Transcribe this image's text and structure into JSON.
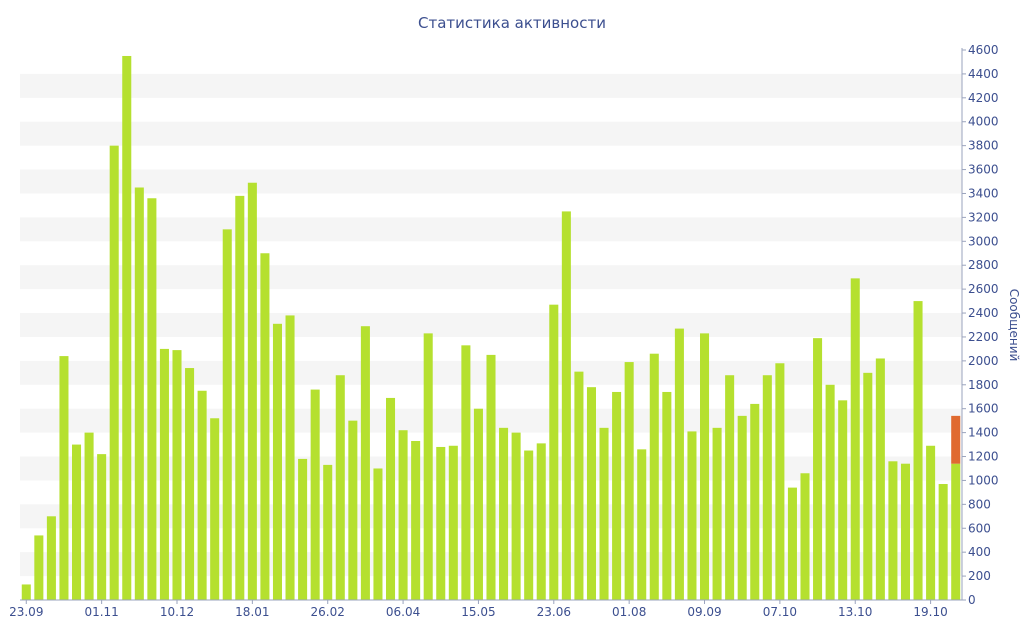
{
  "chart_data": {
    "type": "bar",
    "title": "Статистика активности",
    "ylabel": "Сообщений",
    "ylim": [
      0,
      4600
    ],
    "y_ticks": [
      0,
      200,
      400,
      600,
      800,
      1000,
      1200,
      1400,
      1600,
      1800,
      2000,
      2200,
      2400,
      2600,
      2800,
      3000,
      3200,
      3400,
      3600,
      3800,
      4000,
      4200,
      4400,
      4600
    ],
    "y_axis_position": "right",
    "x_tick_labels": [
      {
        "label": "23.09",
        "index": 0
      },
      {
        "label": "01.11",
        "index": 6
      },
      {
        "label": "10.12",
        "index": 12
      },
      {
        "label": "18.01",
        "index": 18
      },
      {
        "label": "26.02",
        "index": 24
      },
      {
        "label": "06.04",
        "index": 30
      },
      {
        "label": "15.05",
        "index": 36
      },
      {
        "label": "23.06",
        "index": 42
      },
      {
        "label": "01.08",
        "index": 48
      },
      {
        "label": "09.09",
        "index": 54
      },
      {
        "label": "07.10",
        "index": 60
      },
      {
        "label": "13.10",
        "index": 66
      },
      {
        "label": "19.10",
        "index": 72
      }
    ],
    "series": [
      {
        "color": "#b5e02f",
        "values": [
          130,
          540,
          700,
          2040,
          1300,
          1400,
          1220,
          3800,
          4550,
          3450,
          3360,
          2100,
          2090,
          1940,
          1750,
          1520,
          3100,
          3380,
          3490,
          2900,
          2310,
          2380,
          1180,
          1760,
          1130,
          1880,
          1500,
          2290,
          1100,
          1690,
          1420,
          1330,
          2230,
          1280,
          1290,
          2130,
          1600,
          2050,
          1440,
          1400,
          1250,
          1310,
          2470,
          3250,
          1910,
          1780,
          1440,
          1740,
          1990,
          1260,
          2060,
          1740,
          2270,
          1410,
          2230,
          1440,
          1880,
          1540,
          1640,
          1880,
          1980,
          940,
          1060,
          2190,
          1800,
          1670,
          2690,
          1900,
          2020,
          1160,
          1140,
          2500,
          1290,
          970,
          1140
        ]
      },
      {
        "color": "#e06a30",
        "values": [
          0,
          0,
          0,
          0,
          0,
          0,
          0,
          0,
          0,
          0,
          0,
          0,
          0,
          0,
          0,
          0,
          0,
          0,
          0,
          0,
          0,
          0,
          0,
          0,
          0,
          0,
          0,
          0,
          0,
          0,
          0,
          0,
          0,
          0,
          0,
          0,
          0,
          0,
          0,
          0,
          0,
          0,
          0,
          0,
          0,
          0,
          0,
          0,
          0,
          0,
          0,
          0,
          0,
          0,
          0,
          0,
          0,
          0,
          0,
          0,
          0,
          0,
          0,
          0,
          0,
          0,
          0,
          0,
          0,
          0,
          0,
          0,
          0,
          0,
          400
        ]
      }
    ],
    "stacked": true,
    "grid": "alternating horizontal bands"
  }
}
